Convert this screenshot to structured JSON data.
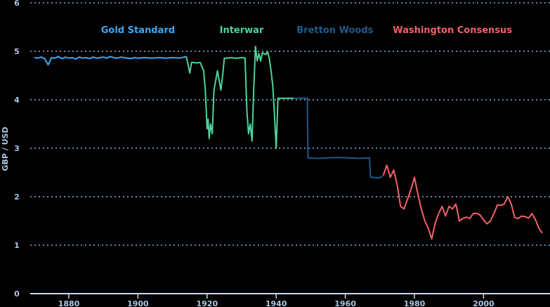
{
  "chart_data": {
    "type": "line",
    "title": "",
    "xlabel": "",
    "ylabel": "GBP / USD",
    "ylim": [
      0,
      6
    ],
    "xlim": [
      1870,
      2017
    ],
    "grid": true,
    "x_ticks": [
      "1880",
      "1900",
      "1920",
      "1940",
      "1960",
      "1980",
      "2000"
    ],
    "y_ticks": [
      "0",
      "1",
      "2",
      "3",
      "4",
      "5",
      "6"
    ],
    "annotations": [
      {
        "label": "Gold Standard",
        "x": 1900,
        "color": "#3ea8f4"
      },
      {
        "label": "Interwar",
        "x": 1930,
        "color": "#4fd39b"
      },
      {
        "label": "Bretton Woods",
        "x": 1957,
        "color": "#1e5a8a"
      },
      {
        "label": "Washington Consensus",
        "x": 1991,
        "color": "#f4606c"
      }
    ],
    "series": [
      {
        "name": "Gold Standard",
        "color": "#3ea8f4",
        "points": [
          [
            1870,
            4.87
          ],
          [
            1871,
            4.86
          ],
          [
            1872,
            4.88
          ],
          [
            1873,
            4.85
          ],
          [
            1874,
            4.72
          ],
          [
            1875,
            4.87
          ],
          [
            1876,
            4.86
          ],
          [
            1877,
            4.89
          ],
          [
            1878,
            4.85
          ],
          [
            1879,
            4.88
          ],
          [
            1880,
            4.86
          ],
          [
            1881,
            4.87
          ],
          [
            1882,
            4.84
          ],
          [
            1883,
            4.88
          ],
          [
            1884,
            4.86
          ],
          [
            1885,
            4.87
          ],
          [
            1886,
            4.85
          ],
          [
            1887,
            4.88
          ],
          [
            1888,
            4.86
          ],
          [
            1889,
            4.87
          ],
          [
            1890,
            4.88
          ],
          [
            1891,
            4.86
          ],
          [
            1892,
            4.89
          ],
          [
            1893,
            4.87
          ],
          [
            1894,
            4.86
          ],
          [
            1895,
            4.88
          ],
          [
            1896,
            4.87
          ],
          [
            1897,
            4.86
          ],
          [
            1898,
            4.85
          ],
          [
            1899,
            4.87
          ],
          [
            1900,
            4.86
          ],
          [
            1902,
            4.87
          ],
          [
            1904,
            4.86
          ],
          [
            1906,
            4.87
          ],
          [
            1908,
            4.86
          ],
          [
            1910,
            4.87
          ],
          [
            1912,
            4.86
          ],
          [
            1914,
            4.89
          ]
        ]
      },
      {
        "name": "Interwar",
        "color": "#4fd39b",
        "points": [
          [
            1914,
            4.89
          ],
          [
            1915,
            4.55
          ],
          [
            1915.5,
            4.77
          ],
          [
            1916,
            4.77
          ],
          [
            1917,
            4.76
          ],
          [
            1918,
            4.77
          ],
          [
            1919,
            4.6
          ],
          [
            1919.5,
            4.2
          ],
          [
            1920,
            3.4
          ],
          [
            1920.3,
            3.6
          ],
          [
            1920.6,
            3.2
          ],
          [
            1921,
            3.5
          ],
          [
            1921.5,
            3.3
          ],
          [
            1922,
            4.2
          ],
          [
            1922.5,
            4.4
          ],
          [
            1923,
            4.6
          ],
          [
            1923.5,
            4.4
          ],
          [
            1924,
            4.2
          ],
          [
            1924.5,
            4.5
          ],
          [
            1925,
            4.86
          ],
          [
            1926,
            4.86
          ],
          [
            1927,
            4.87
          ],
          [
            1928,
            4.86
          ],
          [
            1929,
            4.86
          ],
          [
            1930,
            4.87
          ],
          [
            1931,
            4.86
          ],
          [
            1931.5,
            3.8
          ],
          [
            1932,
            3.3
          ],
          [
            1932.5,
            3.5
          ],
          [
            1933,
            3.15
          ],
          [
            1933.5,
            4.2
          ],
          [
            1934,
            5.1
          ],
          [
            1934.5,
            4.8
          ],
          [
            1935,
            4.95
          ],
          [
            1935.5,
            4.8
          ],
          [
            1936,
            4.97
          ],
          [
            1937,
            4.93
          ],
          [
            1937.5,
            4.99
          ],
          [
            1938,
            4.85
          ],
          [
            1938.5,
            4.6
          ],
          [
            1939,
            4.3
          ],
          [
            1939.5,
            3.7
          ],
          [
            1940,
            3.0
          ],
          [
            1940.5,
            4.03
          ],
          [
            1942,
            4.03
          ],
          [
            1944,
            4.03
          ],
          [
            1945,
            4.03
          ]
        ]
      },
      {
        "name": "Bretton Woods",
        "color": "#1e5a8a",
        "points": [
          [
            1945,
            4.03
          ],
          [
            1949,
            4.03
          ],
          [
            1949.2,
            2.8
          ],
          [
            1952,
            2.79
          ],
          [
            1955,
            2.8
          ],
          [
            1958,
            2.81
          ],
          [
            1961,
            2.8
          ],
          [
            1964,
            2.79
          ],
          [
            1967,
            2.8
          ],
          [
            1967.3,
            2.4
          ],
          [
            1970,
            2.39
          ],
          [
            1971,
            2.44
          ]
        ]
      },
      {
        "name": "Washington Consensus",
        "color": "#f4606c",
        "points": [
          [
            1971,
            2.44
          ],
          [
            1972,
            2.65
          ],
          [
            1973,
            2.4
          ],
          [
            1974,
            2.55
          ],
          [
            1975,
            2.25
          ],
          [
            1976,
            1.8
          ],
          [
            1977,
            1.75
          ],
          [
            1978,
            1.95
          ],
          [
            1979,
            2.15
          ],
          [
            1980,
            2.4
          ],
          [
            1981,
            2.05
          ],
          [
            1982,
            1.75
          ],
          [
            1983,
            1.5
          ],
          [
            1984,
            1.35
          ],
          [
            1985,
            1.13
          ],
          [
            1986,
            1.45
          ],
          [
            1987,
            1.65
          ],
          [
            1988,
            1.8
          ],
          [
            1989,
            1.6
          ],
          [
            1990,
            1.8
          ],
          [
            1991,
            1.75
          ],
          [
            1992,
            1.85
          ],
          [
            1993,
            1.5
          ],
          [
            1994,
            1.55
          ],
          [
            1995,
            1.58
          ],
          [
            1996,
            1.55
          ],
          [
            1997,
            1.65
          ],
          [
            1998,
            1.66
          ],
          [
            1999,
            1.62
          ],
          [
            2000,
            1.52
          ],
          [
            2001,
            1.44
          ],
          [
            2002,
            1.5
          ],
          [
            2003,
            1.65
          ],
          [
            2004,
            1.83
          ],
          [
            2005,
            1.82
          ],
          [
            2006,
            1.85
          ],
          [
            2007,
            2.0
          ],
          [
            2008,
            1.85
          ],
          [
            2009,
            1.57
          ],
          [
            2010,
            1.55
          ],
          [
            2011,
            1.6
          ],
          [
            2012,
            1.59
          ],
          [
            2013,
            1.56
          ],
          [
            2014,
            1.65
          ],
          [
            2015,
            1.53
          ],
          [
            2016,
            1.35
          ],
          [
            2017,
            1.25
          ]
        ]
      }
    ]
  }
}
